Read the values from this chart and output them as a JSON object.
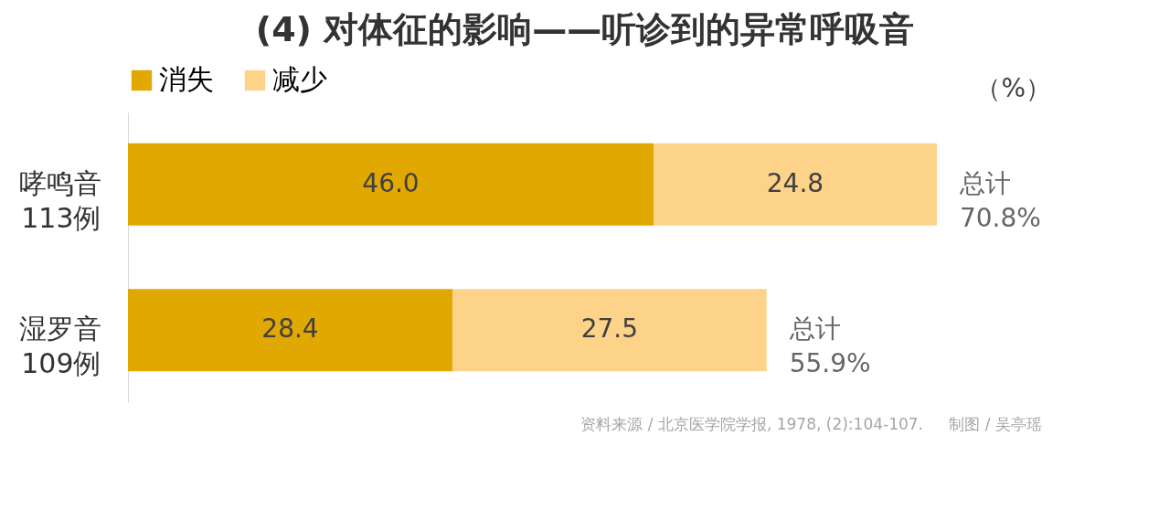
{
  "chart_data": {
    "type": "bar",
    "orientation": "horizontal",
    "stacked": true,
    "title": "(4) 对体征的影响——听诊到的异常呼吸音",
    "categories": [
      "哮鸣音\n113例",
      "湿罗音\n109例"
    ],
    "series": [
      {
        "name": "消失",
        "color": "#e0a800",
        "values": [
          46.0,
          28.4
        ],
        "value_labels": [
          "46.0",
          "28.4"
        ]
      },
      {
        "name": "减少",
        "color": "#fdd38a",
        "values": [
          24.8,
          27.5
        ],
        "value_labels": [
          "24.8",
          "27.5"
        ]
      }
    ],
    "totals": [
      "总计\n70.8%",
      "总计\n55.9%"
    ],
    "legend": "top",
    "annotations": [
      "（%）",
      "资料来源 / 北京医学院学报, 1978, (2):104-107.",
      "制图 / 吴亭瑶"
    ]
  }
}
